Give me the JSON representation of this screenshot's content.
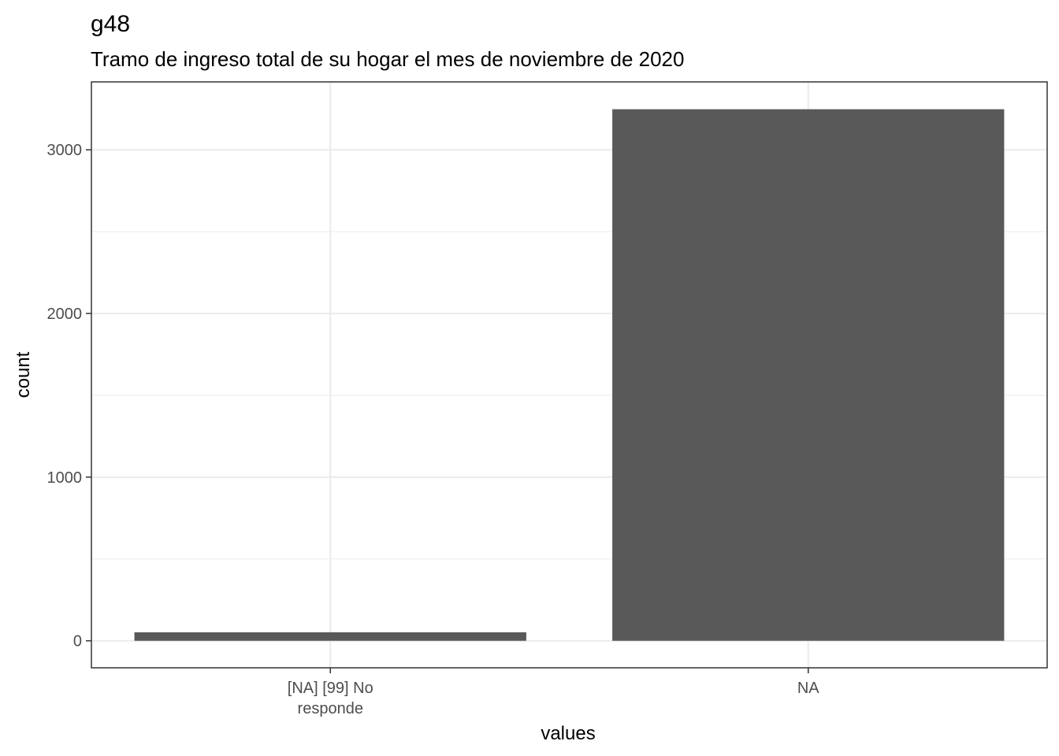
{
  "chart_data": {
    "type": "bar",
    "title": "g48",
    "subtitle": "Tramo de ingreso total de su hogar el mes de noviembre de 2020",
    "xlabel": "values",
    "ylabel": "count",
    "categories": [
      [
        "[NA] [99] No",
        "responde"
      ],
      [
        "NA"
      ]
    ],
    "values": [
      52,
      3248
    ],
    "ylim": [
      -165,
      3415
    ],
    "yticks": [
      0,
      1000,
      2000,
      3000
    ],
    "yminor": [
      500,
      1500,
      2500
    ],
    "grid": true,
    "legend": "none",
    "colors": {
      "bar": "#595959",
      "grid": "#ebebeb",
      "panel_border": "#333333",
      "tick_label": "#4d4d4d",
      "text": "#000000"
    }
  }
}
